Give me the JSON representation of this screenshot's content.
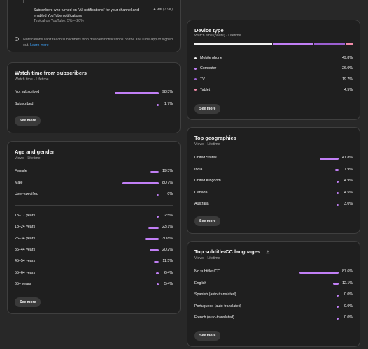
{
  "colors": {
    "bar": "#c17ff5",
    "card": "#1f1f1f",
    "link": "#3ea6ff"
  },
  "notifications_card": {
    "text": "Subscribers who turned on \"All notifications\" for your channel and enabled YouTube notifications",
    "value": "4.9%",
    "count": "(7.9K)",
    "typical": "Typical on YouTube: 5% – 20%",
    "info_icon": "info-icon",
    "note": "Notifications can't reach subscribers who disabled notifications on the YouTube app or signed out.",
    "learn_more": "Learn more"
  },
  "watch_time": {
    "title": "Watch time from subscribers",
    "subtitle": "Watch time · Lifetime",
    "rows": [
      {
        "label": "Not subscribed",
        "value": "98.3%",
        "pct": 98.3
      },
      {
        "label": "Subscribed",
        "value": "1.7%",
        "pct": 1.7
      }
    ],
    "see_more": "See more"
  },
  "age_gender": {
    "title": "Age and gender",
    "subtitle": "Views · Lifetime",
    "gender": [
      {
        "label": "Female",
        "value": "19.3%",
        "pct": 19.3
      },
      {
        "label": "Male",
        "value": "80.7%",
        "pct": 80.7
      },
      {
        "label": "User-specified",
        "value": "0%",
        "pct": 0
      }
    ],
    "ages": [
      {
        "label": "13–17 years",
        "value": "2.5%",
        "pct": 2.5
      },
      {
        "label": "18–24 years",
        "value": "23.1%",
        "pct": 23.1
      },
      {
        "label": "25–34 years",
        "value": "30.8%",
        "pct": 30.8
      },
      {
        "label": "35–44 years",
        "value": "20.2%",
        "pct": 20.2
      },
      {
        "label": "45–54 years",
        "value": "11.5%",
        "pct": 11.5
      },
      {
        "label": "55–64 years",
        "value": "6.4%",
        "pct": 6.4
      },
      {
        "label": "65+ years",
        "value": "5.4%",
        "pct": 5.4
      }
    ],
    "see_more": "See more"
  },
  "device_type": {
    "title": "Device type",
    "subtitle": "Watch time (hours) · Lifetime",
    "rows": [
      {
        "label": "Mobile phone",
        "value": "49.8%",
        "pct": 49.8,
        "color": "#f1f1f1"
      },
      {
        "label": "Computer",
        "value": "26.0%",
        "pct": 26.0,
        "color": "#c17ff5"
      },
      {
        "label": "TV",
        "value": "19.7%",
        "pct": 19.7,
        "color": "#9b5fd1"
      },
      {
        "label": "Tablet",
        "value": "4.5%",
        "pct": 4.5,
        "color": "#f08aa8"
      }
    ],
    "see_more": "See more"
  },
  "geographies": {
    "title": "Top geographies",
    "subtitle": "Views · Lifetime",
    "rows": [
      {
        "label": "United States",
        "value": "41.8%",
        "pct": 41.8
      },
      {
        "label": "India",
        "value": "7.9%",
        "pct": 7.9
      },
      {
        "label": "United Kingdom",
        "value": "4.9%",
        "pct": 4.9
      },
      {
        "label": "Canada",
        "value": "4.5%",
        "pct": 4.5
      },
      {
        "label": "Australia",
        "value": "3.0%",
        "pct": 3.0
      }
    ],
    "see_more": "See more"
  },
  "subtitles": {
    "title": "Top subtitle/CC languages",
    "warning_icon": "warning-icon",
    "subtitle": "Views · Lifetime",
    "rows": [
      {
        "label": "No subtitles/CC",
        "value": "87.6%",
        "pct": 87.6
      },
      {
        "label": "English",
        "value": "12.1%",
        "pct": 12.1
      },
      {
        "label": "Spanish (auto-translated)",
        "value": "0.0%",
        "pct": 0.0
      },
      {
        "label": "Portuguese (auto-translated)",
        "value": "0.0%",
        "pct": 0.0
      },
      {
        "label": "French (auto-translated)",
        "value": "0.0%",
        "pct": 0.0
      }
    ],
    "see_more": "See more"
  }
}
